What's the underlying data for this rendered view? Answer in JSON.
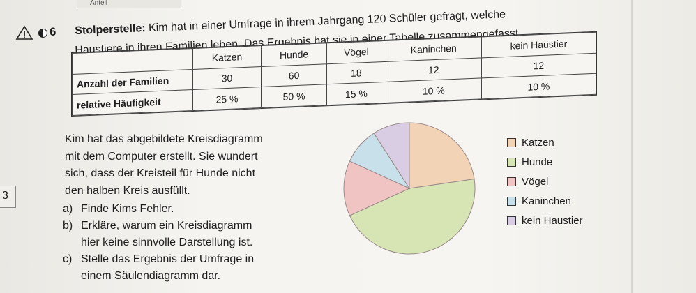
{
  "header": {
    "tab_label": "Anteil",
    "side_marker": "3"
  },
  "task": {
    "number": "6",
    "lead": "Stolperstelle:",
    "line1": " Kim hat in einer Umfrage in ihrem Jahrgang 120 Schüler gefragt, welche",
    "line2": "Haustiere in ihren Familien leben. Das Ergebnis hat sie in einer Tabelle zusammengefasst."
  },
  "table": {
    "headers": [
      "",
      "Katzen",
      "Hunde",
      "Vögel",
      "Kaninchen",
      "kein Haustier"
    ],
    "rows": [
      {
        "label": "Anzahl der Familien",
        "cells": [
          "30",
          "60",
          "18",
          "12",
          "12"
        ]
      },
      {
        "label": "relative Häufigkeit",
        "cells": [
          "25 %",
          "50 %",
          "15 %",
          "10 %",
          "10 %"
        ]
      }
    ]
  },
  "text": {
    "lines": [
      "Kim hat das abgebildete Kreisdiagramm",
      "mit dem Computer erstellt. Sie wundert",
      "sich, dass der Kreisteil für Hunde nicht",
      "den halben Kreis ausfüllt."
    ],
    "questions": [
      {
        "letter": "a)",
        "lines": [
          "Finde Kims Fehler."
        ]
      },
      {
        "letter": "b)",
        "lines": [
          "Erkläre, warum ein Kreisdiagramm",
          "hier keine sinnvolle Darstellung ist."
        ]
      },
      {
        "letter": "c)",
        "lines": [
          "Stelle das Ergebnis der Umfrage in",
          "einem Säulendiagramm dar."
        ]
      }
    ]
  },
  "chart_data": {
    "type": "pie",
    "title": "",
    "categories": [
      "Katzen",
      "Hunde",
      "Vögel",
      "Kaninchen",
      "kein Haustier"
    ],
    "values": [
      30,
      60,
      18,
      12,
      12
    ],
    "colors": [
      "#f2d3b6",
      "#d7e4b4",
      "#f0c4c3",
      "#c7e0ea",
      "#d9cde3"
    ],
    "legend_position": "right"
  },
  "legend": {
    "items": [
      {
        "label": "Katzen",
        "color": "#f2d3b6"
      },
      {
        "label": "Hunde",
        "color": "#d7e4b4"
      },
      {
        "label": "Vögel",
        "color": "#f0c4c3"
      },
      {
        "label": "Kaninchen",
        "color": "#c7e0ea"
      },
      {
        "label": "kein Haustier",
        "color": "#d9cde3"
      }
    ]
  }
}
